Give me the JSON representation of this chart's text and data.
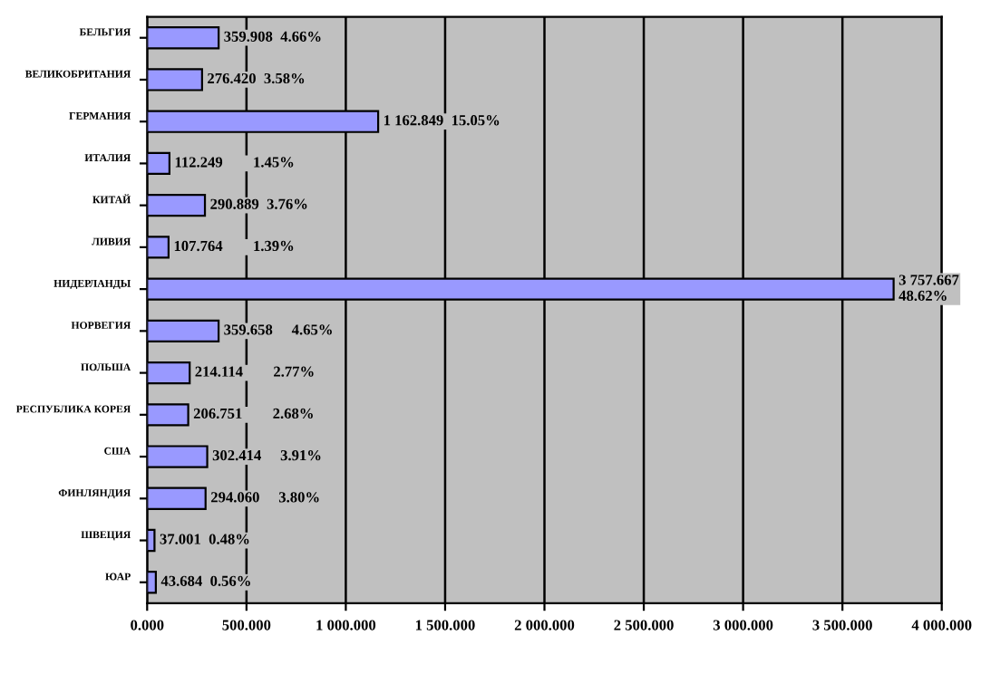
{
  "chart_data": {
    "type": "bar",
    "orientation": "horizontal",
    "categories": [
      "БЕЛЬГИЯ",
      "ВЕЛИКОБРИТАНИЯ",
      "ГЕРМАНИЯ",
      "ИТАЛИЯ",
      "КИТАЙ",
      "ЛИВИЯ",
      "НИДЕРЛАНДЫ",
      "НОРВЕГИЯ",
      "ПОЛЬША",
      "РЕСПУБЛИКА КОРЕЯ",
      "США",
      "ФИНЛЯНДИЯ",
      "ШВЕЦИЯ",
      "ЮАР"
    ],
    "values": [
      359.908,
      276.42,
      1162.849,
      112.249,
      290.889,
      107.764,
      3757.667,
      359.658,
      214.114,
      206.751,
      302.414,
      294.06,
      37.001,
      43.684
    ],
    "value_labels": [
      "359.908  4.66%",
      "276.420  3.58%",
      "1 162.849  15.05%",
      "112.249        1.45%",
      "290.889  3.76%",
      "107.764        1.39%",
      "3 757.667\n48.62%",
      "359.658     4.65%",
      "214.114        2.77%",
      "206.751        2.68%",
      "302.414     3.91%",
      "294.060     3.80%",
      "37.001  0.48%",
      "43.684  0.56%"
    ],
    "color": "#9999ff",
    "xlim": [
      0,
      4000
    ],
    "xticks": [
      {
        "value": 0,
        "label": "0.000"
      },
      {
        "value": 500,
        "label": "500.000"
      },
      {
        "value": 1000,
        "label": "1 000.000"
      },
      {
        "value": 1500,
        "label": "1 500.000"
      },
      {
        "value": 2000,
        "label": "2 000.000"
      },
      {
        "value": 2500,
        "label": "2 500.000"
      },
      {
        "value": 3000,
        "label": "3 000.000"
      },
      {
        "value": 3500,
        "label": "3 500.000"
      },
      {
        "value": 4000,
        "label": "4 000.000"
      }
    ],
    "grid": "x",
    "legend": false
  }
}
